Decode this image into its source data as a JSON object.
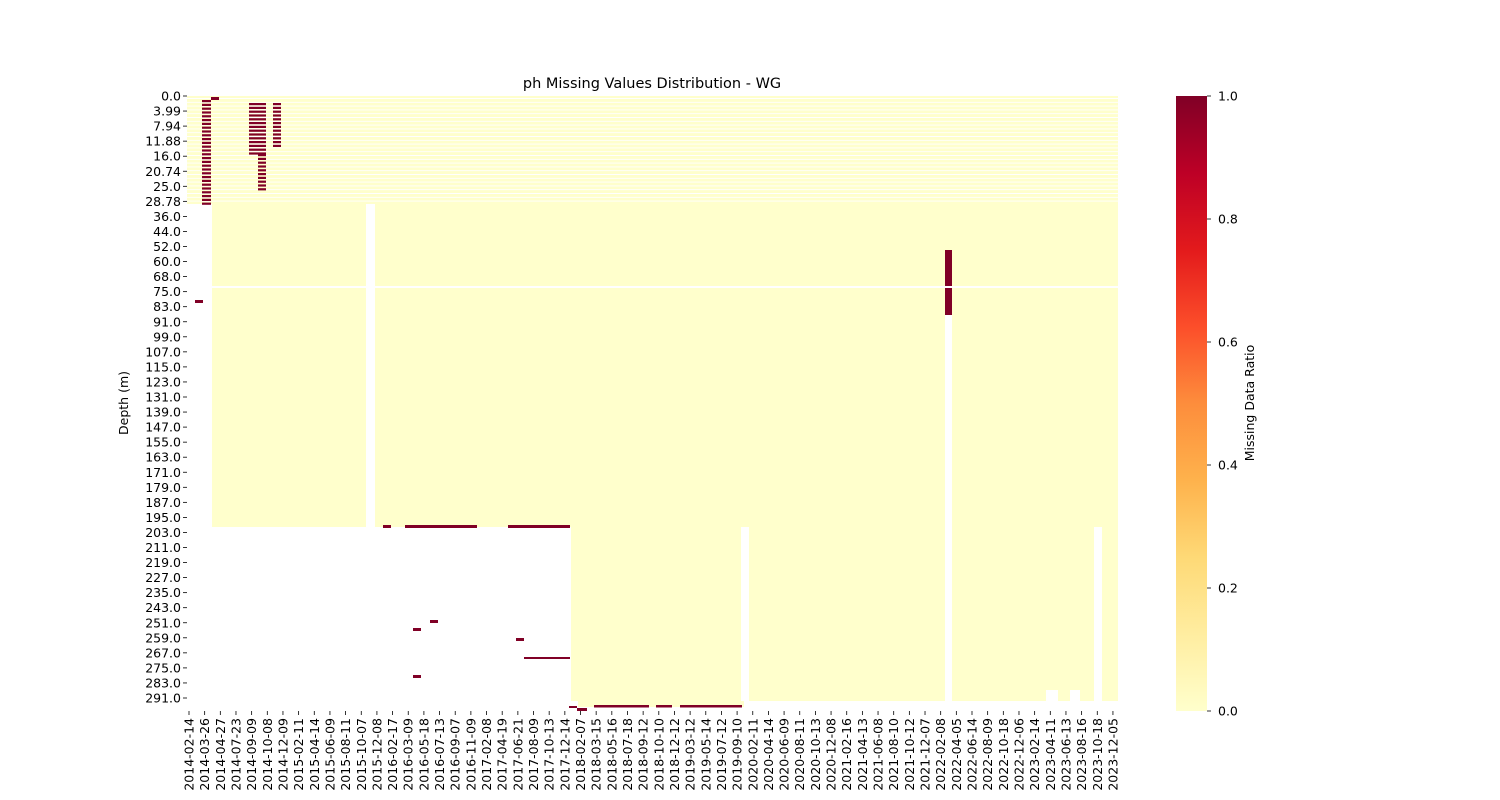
{
  "chart_data": {
    "type": "heatmap",
    "title": "ph Missing Values Distribution - WG",
    "ylabel": "Depth (m)",
    "xlabel": "",
    "colorbar": {
      "label": "Missing Data Ratio",
      "range": [
        0.0,
        1.0
      ],
      "ticks": [
        "0.0",
        "0.2",
        "0.4",
        "0.6",
        "0.8",
        "1.0"
      ],
      "colors": [
        "#ffffcc",
        "#ffeda0",
        "#fed976",
        "#feb24c",
        "#fd8d3c",
        "#fc4e2a",
        "#e31a1c",
        "#bd0026",
        "#800026"
      ]
    },
    "x_tick_labels": [
      "2014-02-14",
      "2014-03-26",
      "2014-04-27",
      "2014-07-23",
      "2014-09-09",
      "2014-10-08",
      "2014-12-09",
      "2015-02-11",
      "2015-04-14",
      "2015-06-09",
      "2015-08-11",
      "2015-10-07",
      "2015-12-08",
      "2016-02-17",
      "2016-03-09",
      "2016-05-18",
      "2016-07-13",
      "2016-09-07",
      "2016-11-09",
      "2017-02-08",
      "2017-04-19",
      "2017-06-21",
      "2017-08-09",
      "2017-10-13",
      "2017-12-14",
      "2018-02-07",
      "2018-03-15",
      "2018-05-16",
      "2018-07-18",
      "2018-09-12",
      "2018-10-10",
      "2018-12-12",
      "2019-03-12",
      "2019-05-14",
      "2019-07-12",
      "2019-09-10",
      "2020-02-11",
      "2020-04-14",
      "2020-06-09",
      "2020-08-11",
      "2020-10-13",
      "2020-12-08",
      "2021-02-16",
      "2021-04-13",
      "2021-06-08",
      "2021-08-10",
      "2021-10-12",
      "2021-12-07",
      "2022-02-08",
      "2022-04-05",
      "2022-06-14",
      "2022-08-09",
      "2022-10-18",
      "2022-12-06",
      "2023-02-14",
      "2023-04-11",
      "2023-06-13",
      "2023-08-16",
      "2023-10-18",
      "2023-12-05"
    ],
    "y_tick_labels": [
      "0.0",
      "3.99",
      "7.94",
      "11.88",
      "16.0",
      "20.74",
      "25.0",
      "28.78",
      "36.0",
      "44.0",
      "52.0",
      "60.0",
      "68.0",
      "75.0",
      "83.0",
      "91.0",
      "99.0",
      "107.0",
      "115.0",
      "123.0",
      "131.0",
      "139.0",
      "147.0",
      "155.0",
      "163.0",
      "171.0",
      "179.0",
      "187.0",
      "195.0",
      "203.0",
      "211.0",
      "219.0",
      "227.0",
      "235.0",
      "243.0",
      "251.0",
      "259.0",
      "267.0",
      "275.0",
      "283.0",
      "291.0"
    ],
    "y_range": [
      "0.0",
      "295.0"
    ],
    "missing_ratio_regions": [
      {
        "date": "2014-03-26",
        "depth_from": "0.0",
        "depth_to": "28.78",
        "value": 1.0,
        "pattern": "alternating rows"
      },
      {
        "date": "2014-09-09",
        "depth_from": "0.0",
        "depth_to": "16.0",
        "value": 1.0,
        "pattern": "alternating rows"
      },
      {
        "date": "2014-10-08",
        "depth_from": "16.0",
        "depth_to": "25.0",
        "value": 1.0,
        "pattern": "alternating rows"
      },
      {
        "date": "2014-12-09",
        "depth_from": "0.0",
        "depth_to": "11.88",
        "value": 1.0,
        "pattern": "alternating rows"
      },
      {
        "date": "2016-03-09 to 2016-11-09",
        "depth_from": "203.0",
        "depth_to": "203.0",
        "value": 1.0
      },
      {
        "date": "2017-06-21 to 2017-12-14",
        "depth_from": "203.0",
        "depth_to": "203.0",
        "value": 1.0
      },
      {
        "date": "2017-08-09 to 2017-12-14",
        "depth_from": "267.0",
        "depth_to": "267.0",
        "value": 1.0
      },
      {
        "date": "2018-03-15 to 2018-09-12",
        "depth_from": "291.0",
        "depth_to": "291.0",
        "value": 1.0
      },
      {
        "date": "2018-10-10 to 2018-12-12",
        "depth_from": "291.0",
        "depth_to": "291.0",
        "value": 1.0
      },
      {
        "date": "2019-03-12 to 2019-09-10",
        "depth_from": "291.0",
        "depth_to": "291.0",
        "value": 1.0
      },
      {
        "date": "2022-02-08",
        "depth_from": "52.0",
        "depth_to": "83.0",
        "value": 1.0
      }
    ],
    "background_value": 0.0
  }
}
